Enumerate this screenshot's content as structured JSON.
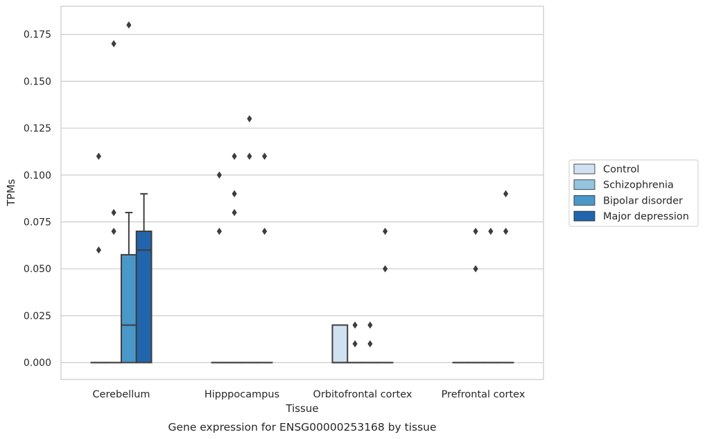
{
  "chart_data": {
    "type": "box",
    "caption": "Gene expression for ENSG00000253168 by tissue",
    "xlabel": "Tissue",
    "ylabel": "TPMs",
    "ylim": [
      -0.009,
      0.19
    ],
    "yticks": [
      0.0,
      0.025,
      0.05,
      0.075,
      0.1,
      0.125,
      0.15,
      0.175
    ],
    "ytick_labels": [
      "0.000",
      "0.025",
      "0.050",
      "0.075",
      "0.100",
      "0.125",
      "0.150",
      "0.175"
    ],
    "categories": [
      "Cerebellum",
      "Hipppocampus",
      "Orbitofrontal cortex",
      "Prefrontal cortex"
    ],
    "grid": "horizontal",
    "legend_position": "right",
    "series": [
      {
        "name": "Control",
        "color": "#d0e1f2",
        "boxes": [
          {
            "min": 0,
            "q1": 0,
            "median": 0,
            "q3": 0,
            "max": 0,
            "fliers": [
              0.06,
              0.11
            ]
          },
          {
            "min": 0,
            "q1": 0,
            "median": 0,
            "q3": 0,
            "max": 0,
            "fliers": [
              0.07,
              0.1
            ]
          },
          {
            "min": 0,
            "q1": 0,
            "median": 0,
            "q3": 0.02,
            "max": 0.02,
            "fliers": []
          },
          {
            "min": 0,
            "q1": 0,
            "median": 0,
            "q3": 0,
            "max": 0,
            "fliers": []
          }
        ]
      },
      {
        "name": "Schizophrenia",
        "color": "#94c4df",
        "boxes": [
          {
            "min": 0,
            "q1": 0,
            "median": 0,
            "q3": 0,
            "max": 0,
            "fliers": [
              0.07,
              0.08,
              0.17
            ]
          },
          {
            "min": 0,
            "q1": 0,
            "median": 0,
            "q3": 0,
            "max": 0,
            "fliers": [
              0.08,
              0.09,
              0.11
            ]
          },
          {
            "min": 0,
            "q1": 0,
            "median": 0,
            "q3": 0,
            "max": 0,
            "fliers": [
              0.01,
              0.02
            ]
          },
          {
            "min": 0,
            "q1": 0,
            "median": 0,
            "q3": 0,
            "max": 0,
            "fliers": [
              0.05,
              0.07
            ]
          }
        ]
      },
      {
        "name": "Bipolar disorder",
        "color": "#4a98c9",
        "boxes": [
          {
            "min": 0,
            "q1": 0,
            "median": 0.02,
            "q3": 0.0575,
            "max": 0.08,
            "fliers": [
              0.18
            ]
          },
          {
            "min": 0,
            "q1": 0,
            "median": 0,
            "q3": 0,
            "max": 0,
            "fliers": [
              0.11,
              0.13
            ]
          },
          {
            "min": 0,
            "q1": 0,
            "median": 0,
            "q3": 0,
            "max": 0,
            "fliers": [
              0.01,
              0.02
            ]
          },
          {
            "min": 0,
            "q1": 0,
            "median": 0,
            "q3": 0,
            "max": 0,
            "fliers": [
              0.07
            ]
          }
        ]
      },
      {
        "name": "Major depression",
        "color": "#2166ac",
        "boxes": [
          {
            "min": 0,
            "q1": 0,
            "median": 0.06,
            "q3": 0.07,
            "max": 0.09,
            "fliers": []
          },
          {
            "min": 0,
            "q1": 0,
            "median": 0,
            "q3": 0,
            "max": 0,
            "fliers": [
              0.07,
              0.11
            ]
          },
          {
            "min": 0,
            "q1": 0,
            "median": 0,
            "q3": 0,
            "max": 0,
            "fliers": [
              0.05,
              0.07
            ]
          },
          {
            "min": 0,
            "q1": 0,
            "median": 0,
            "q3": 0,
            "max": 0,
            "fliers": [
              0.07,
              0.09
            ]
          }
        ]
      }
    ]
  }
}
